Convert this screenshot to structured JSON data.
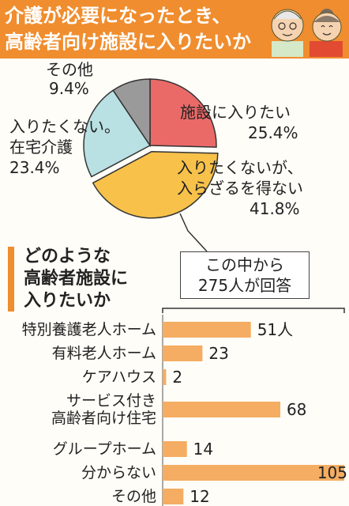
{
  "header": {
    "title_line1": "介護が必要になったとき、",
    "title_line2": "高齢者向け施設に入りたいか",
    "accent_color": "#f08d2e"
  },
  "pie_labels": {
    "shisetsu_name": "施設に入りたい",
    "shisetsu_pct": "25.4%",
    "yamunashi_line1": "入りたくないが、",
    "yamunashi_line2": "入らざるを得ない",
    "yamunashi_pct": "41.8%",
    "zaitaku_line1": "入りたくない。",
    "zaitaku_line2": "在宅介護",
    "zaitaku_pct": "23.4%",
    "other_name": "その他",
    "other_pct": "9.4%"
  },
  "section": {
    "title_line1": "どのような",
    "title_line2": "高齢者施設に",
    "title_line3": "入りたいか"
  },
  "callout": {
    "line1": "この中から",
    "line2": "275人が回答"
  },
  "chart_data": [
    {
      "type": "pie",
      "title": "介護が必要になったとき、高齢者向け施設に入りたいか",
      "slices": [
        {
          "label": "施設に入りたい",
          "value": 25.4,
          "color": "#ea6a68"
        },
        {
          "label": "入りたくないが、入らざるを得ない",
          "value": 41.8,
          "color": "#f7c14a"
        },
        {
          "label": "入りたくない。在宅介護",
          "value": 23.4,
          "color": "#b9e0e2"
        },
        {
          "label": "その他",
          "value": 9.4,
          "color": "#9a9a9a"
        }
      ]
    },
    {
      "type": "bar",
      "orientation": "horizontal",
      "title": "どのような高齢者施設に入りたいか",
      "categories": [
        [
          "特別養護老人ホーム"
        ],
        [
          "有料老人ホーム"
        ],
        [
          "ケアハウス"
        ],
        [
          "サービス付き",
          "高齢者向け住宅"
        ],
        [
          "グループホーム"
        ],
        [
          "分からない"
        ],
        [
          "その他"
        ]
      ],
      "values": [
        51,
        23,
        2,
        68,
        14,
        105,
        12
      ],
      "value_labels": [
        "51人",
        "23",
        "2",
        "68",
        "14",
        "105",
        "12"
      ],
      "bar_color": "#f4ad62",
      "xlim": [
        0,
        105
      ]
    }
  ]
}
